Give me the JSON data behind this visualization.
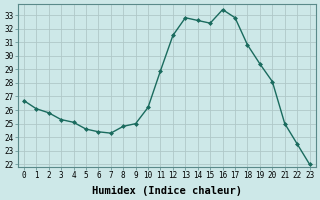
{
  "x": [
    0,
    1,
    2,
    3,
    4,
    5,
    6,
    7,
    8,
    9,
    10,
    11,
    12,
    13,
    14,
    15,
    16,
    17,
    18,
    19,
    20,
    21,
    22,
    23
  ],
  "y": [
    26.7,
    26.1,
    25.8,
    25.3,
    25.1,
    24.6,
    24.4,
    24.3,
    24.8,
    25.0,
    26.2,
    28.9,
    31.5,
    32.8,
    32.6,
    32.4,
    33.4,
    32.8,
    30.8,
    29.4,
    28.1,
    25.0,
    23.5,
    22.0
  ],
  "line_color": "#1a6b5e",
  "marker": "D",
  "marker_size": 2.0,
  "bg_color": "#cde8e8",
  "grid_color": "#b0c8c8",
  "xlabel": "Humidex (Indice chaleur)",
  "xlim": [
    -0.5,
    23.5
  ],
  "ylim": [
    21.8,
    33.8
  ],
  "yticks": [
    22,
    23,
    24,
    25,
    26,
    27,
    28,
    29,
    30,
    31,
    32,
    33
  ],
  "xticks": [
    0,
    1,
    2,
    3,
    4,
    5,
    6,
    7,
    8,
    9,
    10,
    11,
    12,
    13,
    14,
    15,
    16,
    17,
    18,
    19,
    20,
    21,
    22,
    23
  ],
  "tick_fontsize": 5.5,
  "xlabel_fontsize": 7.5,
  "line_width": 1.0
}
